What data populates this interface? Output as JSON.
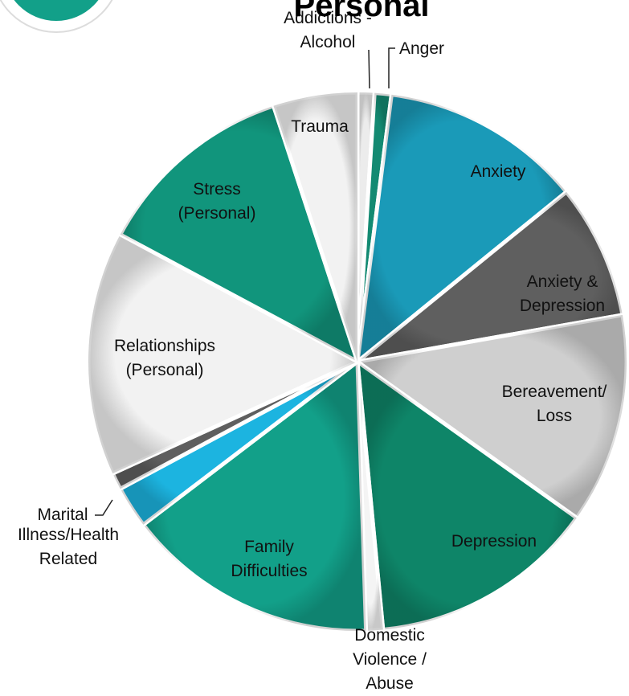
{
  "chart_data": {
    "type": "pie",
    "title": "Personal",
    "categories": [
      "Addictions -\nAlcohol",
      "Anger",
      "Anxiety",
      "Anxiety &\nDepression",
      "Bereavement/\nLoss",
      "Depression",
      "Domestic\nViolence /\nAbuse",
      "Family\nDifficulties",
      "Illness/Health\nRelated",
      "Marital",
      "Relationships\n(Personal)",
      "Stress\n(Personal)",
      "Trauma"
    ],
    "values": [
      1,
      1,
      12,
      8,
      12.5,
      13.5,
      1,
      15,
      2.5,
      1,
      14.5,
      12,
      5
    ],
    "colors": [
      "#ececec",
      "#138a72",
      "#1a9ab8",
      "#5f5f5f",
      "#cfcfcf",
      "#0e8568",
      "#f4f4f4",
      "#12a089",
      "#1cb4e0",
      "#5f5f5f",
      "#f2f2f2",
      "#11957c",
      "#f2f2f2"
    ]
  }
}
